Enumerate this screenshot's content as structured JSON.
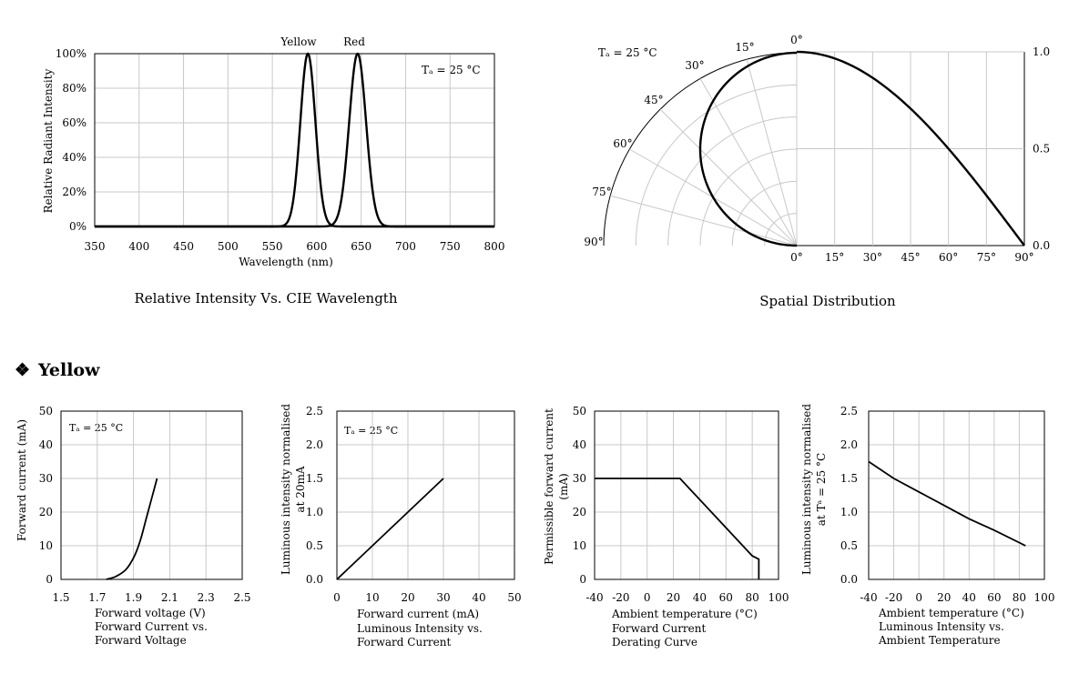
{
  "chart_data": [
    {
      "type": "line",
      "title": "Relative Intensity Vs. CIE Wavelength",
      "xlabel": "Wavelength (nm)",
      "ylabel": "Relative Radiant Intensity",
      "xlim": [
        350,
        800
      ],
      "ylim": [
        0,
        100
      ],
      "xticks": [
        "350",
        "400",
        "450",
        "500",
        "550",
        "600",
        "650",
        "700",
        "750",
        "800"
      ],
      "yticks": [
        "0%",
        "20%",
        "40%",
        "60%",
        "80%",
        "100%"
      ],
      "annotation": "Tₐ = 25 °C",
      "series": [
        {
          "name": "Yellow",
          "x": [
            570,
            575,
            580,
            583,
            586,
            588,
            590,
            592,
            594,
            597,
            600,
            605,
            610
          ],
          "values": [
            0,
            4,
            20,
            45,
            78,
            95,
            100,
            95,
            78,
            45,
            18,
            3,
            0
          ]
        },
        {
          "name": "Red",
          "x": [
            620,
            625,
            630,
            635,
            640,
            643,
            646,
            649,
            652,
            657,
            662,
            668,
            675
          ],
          "values": [
            0,
            2,
            10,
            33,
            70,
            93,
            100,
            93,
            72,
            38,
            12,
            2,
            0
          ]
        }
      ]
    },
    {
      "type": "line",
      "title": "Spatial Distribution",
      "polar_labels": [
        "0°",
        "15°",
        "30°",
        "45°",
        "60°",
        "75°",
        "90°"
      ],
      "x_axis_labels": [
        "0°",
        "15°",
        "30°",
        "45°",
        "60°",
        "75°",
        "90°"
      ],
      "right_ticks": [
        "1.0",
        "0.5",
        "0.0"
      ],
      "annotation": "Tₐ = 25 °C",
      "series": [
        {
          "angle_deg": [
            0,
            10,
            20,
            30,
            40,
            50,
            60,
            70,
            80,
            90
          ],
          "values": [
            1.0,
            0.99,
            0.96,
            0.91,
            0.83,
            0.72,
            0.58,
            0.42,
            0.22,
            0.0
          ]
        }
      ]
    },
    {
      "type": "line",
      "title": "Forward Current vs. Forward Voltage",
      "xlabel": "Forward voltage (V)",
      "ylabel": "Forward current (mA)",
      "xlim": [
        1.5,
        2.5
      ],
      "ylim": [
        0,
        50
      ],
      "xticks": [
        "1.5",
        "1.7",
        "1.9",
        "2.1",
        "2.3",
        "2.5"
      ],
      "yticks": [
        "0",
        "10",
        "20",
        "30",
        "40",
        "50"
      ],
      "annotation": "Tₐ = 25 °C",
      "caption": [
        "Forward voltage (V)",
        "Forward Current vs.",
        "Forward Voltage"
      ],
      "series": [
        {
          "x": [
            1.75,
            1.8,
            1.85,
            1.88,
            1.91,
            1.94,
            1.97,
            2.0,
            2.03
          ],
          "values": [
            0,
            0.8,
            2.5,
            4.5,
            7.5,
            12,
            18,
            24,
            30
          ]
        }
      ]
    },
    {
      "type": "line",
      "title": "Luminous Intensity vs. Forward Current",
      "xlabel": "Forward current (mA)",
      "ylabel": "Luminous intensity normalised at 20mA",
      "xlim": [
        0,
        50
      ],
      "ylim": [
        0,
        2.5
      ],
      "xticks": [
        "0",
        "10",
        "20",
        "30",
        "40",
        "50"
      ],
      "yticks": [
        "0.0",
        "0.5",
        "1.0",
        "1.5",
        "2.0",
        "2.5"
      ],
      "annotation": "Tₐ = 25 °C",
      "caption": [
        "Forward current (mA)",
        "Luminous Intensity vs.",
        "Forward Current"
      ],
      "series": [
        {
          "x": [
            0,
            30
          ],
          "values": [
            0,
            1.5
          ]
        }
      ]
    },
    {
      "type": "line",
      "title": "Forward Current Derating Curve",
      "xlabel": "Ambient temperature (°C)",
      "ylabel": "Permissible forward current (mA)",
      "xlim": [
        -40,
        100
      ],
      "ylim": [
        0,
        50
      ],
      "xticks": [
        "-40",
        "-20",
        "0",
        "20",
        "40",
        "60",
        "80",
        "100"
      ],
      "yticks": [
        "0",
        "10",
        "20",
        "30",
        "40",
        "50"
      ],
      "caption": [
        "Ambient temperature (°C)",
        "Forward Current",
        "Derating  Curve"
      ],
      "series": [
        {
          "x": [
            -40,
            25,
            80,
            85,
            85
          ],
          "values": [
            30,
            30,
            7,
            6,
            0
          ]
        }
      ]
    },
    {
      "type": "line",
      "title": "Luminous Intensity vs. Ambient Temperature",
      "xlabel": "Ambient temperature (°C)",
      "ylabel": "Luminous intensity normalised at Tᵃ = 25 °C",
      "xlim": [
        -40,
        100
      ],
      "ylim": [
        0,
        2.5
      ],
      "xticks": [
        "-40",
        "-20",
        "0",
        "20",
        "40",
        "60",
        "80",
        "100"
      ],
      "yticks": [
        "0.0",
        "0.5",
        "1.0",
        "1.5",
        "2.0",
        "2.5"
      ],
      "caption": [
        "Ambient temperature (°C)",
        "Luminous Intensity vs.",
        "Ambient Temperature"
      ],
      "series": [
        {
          "x": [
            -40,
            -20,
            0,
            20,
            40,
            60,
            85
          ],
          "values": [
            1.75,
            1.5,
            1.3,
            1.1,
            0.9,
            0.73,
            0.5
          ]
        }
      ]
    }
  ],
  "section": {
    "bullet": "❖",
    "title": "Yellow"
  },
  "labels": {
    "ylabel_c2_line1": "Luminous intensity normalised",
    "ylabel_c2_line2": "at 20mA",
    "ylabel_c3_line1": "Permissible forward current",
    "ylabel_c3_line2": "(mA)",
    "ylabel_c4_line1": "Luminous intensity normalised",
    "ylabel_c4_line2": "at Tᵃ = 25 °C"
  }
}
